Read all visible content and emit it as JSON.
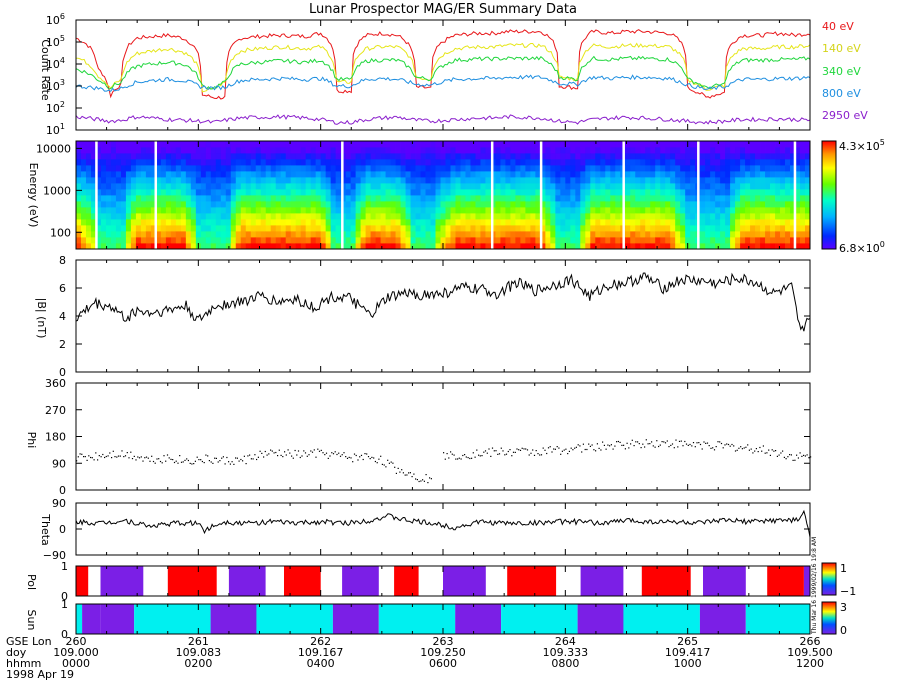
{
  "title": "Lunar Prospector MAG/ER Summary Data",
  "colors": {
    "axis": "#000000",
    "40 eV": "#e8181b",
    "140 eV": "#e6e61a",
    "340 eV": "#1fd63c",
    "800 eV": "#1f8fe0",
    "2950 eV": "#8a1fcc",
    "pol_red": "#ff0000",
    "pol_purple": "#7b1fe6",
    "sun_cyan": "#00f0f0",
    "sun_purple": "#7b1fe6",
    "gap": "#ffffff"
  },
  "panels": {
    "count_rate": {
      "ylabel": "Count Rate",
      "legend": [
        "40 eV",
        "140 eV",
        "340 eV",
        "800 eV",
        "2950 eV"
      ],
      "ytick_base": "10",
      "ytick_exps": [
        "1",
        "2",
        "3",
        "4",
        "5",
        "6"
      ],
      "scale": "log"
    },
    "energy": {
      "ylabel": "Energy (eV)",
      "yticks": [
        "100",
        "1000",
        "10000"
      ],
      "colorbar_max": "4.3×10",
      "colorbar_max_exp": "5",
      "colorbar_min": "6.8×10",
      "colorbar_min_exp": "0"
    },
    "b": {
      "ylabel": "|B| (nT)",
      "yticks": [
        "0",
        "2",
        "4",
        "6",
        "8"
      ],
      "ylim": [
        0,
        8
      ]
    },
    "phi": {
      "ylabel": "Phi",
      "yticks": [
        "0",
        "90",
        "180",
        "270",
        "360"
      ],
      "ylim": [
        0,
        360
      ]
    },
    "theta": {
      "ylabel": "Theta",
      "yticks": [
        "−90",
        "0",
        "90"
      ],
      "ylim": [
        -90,
        90
      ]
    },
    "pol": {
      "ylabel": "Pol",
      "yticks": [
        "0",
        "1"
      ],
      "cbar_top": "1",
      "cbar_bottom": "−1",
      "side_text": "1999/02/16  19:8 AM"
    },
    "sun": {
      "ylabel": "Sun",
      "yticks": [
        "0",
        "1"
      ],
      "cbar_top": "3",
      "cbar_bottom": "0",
      "side_text": "Thu Mar 16"
    }
  },
  "x_axis": {
    "row_labels": [
      "GSE Lon",
      "doy",
      "hhmm"
    ],
    "date": "1998 Apr 19",
    "ticks": [
      {
        "lon": "260",
        "doy": "109.000",
        "hhmm": "0000"
      },
      {
        "lon": "261",
        "doy": "109.083",
        "hhmm": "0200"
      },
      {
        "lon": "262",
        "doy": "109.167",
        "hhmm": "0400"
      },
      {
        "lon": "263",
        "doy": "109.250",
        "hhmm": "0600"
      },
      {
        "lon": "264",
        "doy": "109.333",
        "hhmm": "0800"
      },
      {
        "lon": "265",
        "doy": "109.417",
        "hhmm": "1000"
      },
      {
        "lon": "266",
        "doy": "109.500",
        "hhmm": "1200"
      }
    ]
  },
  "chart_data": [
    {
      "type": "line",
      "title": "Lunar Prospector MAG/ER Summary Data",
      "ylabel": "Count Rate",
      "yscale": "log",
      "ylim": [
        10,
        1000000
      ],
      "x_hours": [
        0,
        0.35,
        0.55,
        0.75,
        1.0,
        1.25,
        1.5,
        1.75,
        2.05,
        2.25,
        2.45,
        2.7,
        3.0,
        3.35,
        3.75,
        4.0,
        4.25,
        4.5,
        4.75,
        5.0,
        5.25,
        5.55,
        5.8,
        6.2,
        6.6,
        6.85,
        7.05,
        7.3,
        7.6,
        7.9,
        8.2,
        8.45,
        8.75,
        9.0,
        9.3,
        9.7,
        10.0,
        10.3,
        10.6,
        10.9,
        11.2,
        11.5,
        11.75,
        12.0
      ],
      "series": [
        {
          "name": "40 eV",
          "values": [
            150000,
            6000,
            300,
            1200,
            150000,
            180000,
            200000,
            150000,
            400,
            300,
            300,
            150000,
            180000,
            200000,
            180000,
            250000,
            600,
            600,
            200000,
            250000,
            200000,
            900,
            800,
            200000,
            250000,
            250000,
            300000,
            300000,
            300000,
            1000,
            800,
            300000,
            250000,
            300000,
            300000,
            250000,
            800,
            300,
            500,
            200000,
            200000,
            250000,
            200000,
            250000
          ]
        },
        {
          "name": "140 eV",
          "values": [
            20000,
            3000,
            700,
            2000,
            30000,
            40000,
            50000,
            35000,
            600,
            700,
            1500,
            40000,
            50000,
            60000,
            50000,
            60000,
            1500,
            1500,
            50000,
            60000,
            60000,
            2500,
            2000,
            50000,
            60000,
            60000,
            70000,
            70000,
            70000,
            2500,
            2000,
            70000,
            60000,
            70000,
            70000,
            60000,
            1800,
            700,
            1000,
            50000,
            50000,
            60000,
            60000,
            70000
          ]
        },
        {
          "name": "340 eV",
          "values": [
            6000,
            2000,
            800,
            1500,
            8000,
            10000,
            12000,
            10000,
            1000,
            800,
            1500,
            10000,
            12000,
            14000,
            12000,
            15000,
            2000,
            2000,
            14000,
            15000,
            15000,
            2500,
            2000,
            15000,
            17000,
            17000,
            18000,
            18000,
            18000,
            2500,
            2000,
            18000,
            16000,
            18000,
            18000,
            16000,
            2000,
            800,
            1200,
            15000,
            15000,
            16000,
            16000,
            18000
          ]
        },
        {
          "name": "800 eV",
          "values": [
            1000,
            800,
            600,
            800,
            1500,
            1800,
            2000,
            1800,
            900,
            800,
            900,
            1800,
            2000,
            2200,
            2000,
            2200,
            1000,
            1000,
            2000,
            2200,
            2000,
            1200,
            1100,
            2000,
            2200,
            2200,
            2500,
            2500,
            2500,
            1300,
            1200,
            2500,
            2200,
            2500,
            2500,
            2200,
            1100,
            700,
            900,
            2000,
            2000,
            2200,
            2200,
            2500
          ]
        },
        {
          "name": "2950 eV",
          "values": [
            40,
            30,
            25,
            28,
            40,
            35,
            30,
            28,
            25,
            22,
            28,
            35,
            38,
            40,
            35,
            30,
            22,
            22,
            30,
            35,
            38,
            28,
            25,
            30,
            35,
            35,
            40,
            38,
            35,
            25,
            22,
            30,
            35,
            38,
            35,
            30,
            25,
            22,
            25,
            30,
            30,
            32,
            30,
            28
          ]
        }
      ]
    },
    {
      "type": "heatmap",
      "ylabel": "Energy (eV)",
      "yscale": "log",
      "ylim": [
        40,
        15000
      ],
      "colorbar_range": [
        6.8,
        430000
      ],
      "x_hours": [
        0,
        0.35,
        0.55,
        0.75,
        1.0,
        1.25,
        1.5,
        1.75,
        2.05,
        2.25,
        2.45,
        2.7,
        3.0,
        3.35,
        3.75,
        4.0,
        4.25,
        4.5,
        4.75,
        5.0,
        5.25,
        5.55,
        5.8,
        6.2,
        6.6,
        6.85,
        7.05,
        7.3,
        7.6,
        7.9,
        8.2,
        8.45,
        8.75,
        9.0,
        9.3,
        9.7,
        10.0,
        10.3,
        10.6,
        10.9,
        11.2,
        11.5,
        11.75,
        12.0
      ],
      "plasma_sheet_level": [
        1.0,
        0.3,
        0.0,
        0.1,
        1.0,
        1.0,
        1.0,
        1.0,
        0.0,
        0.0,
        0.1,
        1.0,
        1.0,
        1.0,
        1.0,
        1.0,
        0.1,
        0.1,
        1.0,
        1.0,
        1.0,
        0.1,
        0.1,
        1.0,
        1.0,
        1.0,
        1.0,
        1.0,
        1.0,
        0.1,
        0.1,
        1.0,
        1.0,
        1.0,
        1.0,
        1.0,
        0.1,
        0.0,
        0.0,
        1.0,
        1.0,
        1.0,
        1.0,
        1.0
      ],
      "data_gaps_hours": [
        0.33,
        1.3,
        4.35,
        6.8,
        7.6,
        8.95,
        10.17,
        11.75
      ]
    },
    {
      "type": "line",
      "ylabel": "|B| (nT)",
      "ylim": [
        0,
        8
      ],
      "x_hours": [
        0,
        0.3,
        0.6,
        0.8,
        1.0,
        1.2,
        1.5,
        1.8,
        2.0,
        2.3,
        2.6,
        3.0,
        3.3,
        3.6,
        3.9,
        4.2,
        4.5,
        4.8,
        5.1,
        5.4,
        5.7,
        6.0,
        6.3,
        6.6,
        6.9,
        7.2,
        7.5,
        7.8,
        8.1,
        8.4,
        8.7,
        9.0,
        9.3,
        9.6,
        9.9,
        10.2,
        10.5,
        10.8,
        11.1,
        11.4,
        11.7,
        11.85,
        12.0
      ],
      "series": [
        {
          "values": [
            3.8,
            4.9,
            4.6,
            3.8,
            4.4,
            4.2,
            4.4,
            4.7,
            3.6,
            4.8,
            4.9,
            5.4,
            5.0,
            5.2,
            4.6,
            5.4,
            5.2,
            4.0,
            5.3,
            5.6,
            5.5,
            5.6,
            6.0,
            5.9,
            5.6,
            6.4,
            5.8,
            6.2,
            6.6,
            5.4,
            6.2,
            6.4,
            6.8,
            6.0,
            6.6,
            6.5,
            6.3,
            6.7,
            6.4,
            5.6,
            6.0,
            2.7,
            4.2
          ]
        }
      ]
    },
    {
      "type": "scatter",
      "ylabel": "Phi",
      "ylim": [
        0,
        360
      ],
      "x_hours": [
        0,
        0.3,
        0.6,
        0.9,
        1.2,
        1.5,
        1.8,
        2.1,
        2.4,
        2.7,
        3.0,
        3.3,
        3.6,
        3.9,
        4.2,
        4.5,
        4.8,
        5.0,
        5.2,
        5.4,
        5.6,
        5.75,
        6.0,
        6.3,
        6.6,
        6.9,
        7.2,
        7.5,
        7.8,
        8.1,
        8.4,
        8.7,
        9.0,
        9.3,
        9.6,
        9.9,
        10.2,
        10.5,
        10.8,
        11.1,
        11.4,
        11.7,
        12.0
      ],
      "series": [
        {
          "values": [
            110,
            115,
            125,
            120,
            105,
            110,
            100,
            105,
            100,
            100,
            120,
            125,
            120,
            125,
            120,
            110,
            115,
            100,
            75,
            60,
            45,
            40,
            115,
            120,
            125,
            130,
            130,
            130,
            135,
            140,
            145,
            150,
            155,
            160,
            160,
            155,
            155,
            150,
            145,
            140,
            130,
            115,
            110
          ]
        }
      ]
    },
    {
      "type": "line",
      "ylabel": "Theta",
      "ylim": [
        -90,
        90
      ],
      "x_hours": [
        0,
        0.4,
        0.8,
        1.2,
        1.6,
        2.0,
        2.1,
        2.4,
        2.8,
        3.2,
        3.6,
        4.0,
        4.4,
        4.8,
        5.1,
        5.4,
        5.8,
        6.2,
        6.6,
        7.0,
        7.4,
        7.8,
        8.2,
        8.6,
        9.0,
        9.4,
        9.8,
        10.2,
        10.6,
        11.0,
        11.4,
        11.8,
        11.9,
        12.0
      ],
      "series": [
        {
          "values": [
            25,
            20,
            30,
            10,
            20,
            20,
            -5,
            25,
            20,
            25,
            20,
            25,
            20,
            30,
            45,
            30,
            20,
            5,
            25,
            20,
            20,
            25,
            25,
            20,
            30,
            25,
            25,
            20,
            30,
            25,
            30,
            30,
            60,
            -30
          ]
        }
      ]
    },
    {
      "type": "bar",
      "ylabel": "Pol",
      "ylim": [
        0,
        1
      ],
      "segments_hours": [
        {
          "start": 0.0,
          "end": 0.2,
          "color": "red"
        },
        {
          "start": 0.4,
          "end": 1.1,
          "color": "purple"
        },
        {
          "start": 1.5,
          "end": 2.3,
          "color": "red"
        },
        {
          "start": 2.5,
          "end": 3.1,
          "color": "purple"
        },
        {
          "start": 3.4,
          "end": 4.0,
          "color": "red"
        },
        {
          "start": 4.35,
          "end": 4.95,
          "color": "purple"
        },
        {
          "start": 5.2,
          "end": 5.6,
          "color": "red"
        },
        {
          "start": 6.0,
          "end": 6.7,
          "color": "purple"
        },
        {
          "start": 7.05,
          "end": 7.85,
          "color": "red"
        },
        {
          "start": 8.25,
          "end": 8.95,
          "color": "purple"
        },
        {
          "start": 9.25,
          "end": 10.05,
          "color": "red"
        },
        {
          "start": 10.25,
          "end": 10.95,
          "color": "purple"
        },
        {
          "start": 11.3,
          "end": 11.9,
          "color": "red"
        },
        {
          "start": 11.9,
          "end": 12.0,
          "color": "purple"
        }
      ]
    },
    {
      "type": "bar",
      "ylabel": "Sun",
      "ylim": [
        0,
        1
      ],
      "segments_hours": [
        {
          "start": 0.0,
          "end": 0.1,
          "color": "cyan"
        },
        {
          "start": 0.1,
          "end": 0.4,
          "color": "purple"
        },
        {
          "start": 0.4,
          "end": 0.95,
          "color": "purple"
        },
        {
          "start": 0.95,
          "end": 2.2,
          "color": "cyan"
        },
        {
          "start": 2.2,
          "end": 2.95,
          "color": "purple"
        },
        {
          "start": 2.95,
          "end": 4.2,
          "color": "cyan"
        },
        {
          "start": 4.2,
          "end": 4.95,
          "color": "purple"
        },
        {
          "start": 4.95,
          "end": 6.2,
          "color": "cyan"
        },
        {
          "start": 6.2,
          "end": 6.95,
          "color": "purple"
        },
        {
          "start": 6.95,
          "end": 8.2,
          "color": "cyan"
        },
        {
          "start": 8.2,
          "end": 8.95,
          "color": "purple"
        },
        {
          "start": 8.95,
          "end": 10.2,
          "color": "cyan"
        },
        {
          "start": 10.2,
          "end": 10.95,
          "color": "purple"
        },
        {
          "start": 10.95,
          "end": 12.0,
          "color": "cyan"
        }
      ]
    }
  ]
}
